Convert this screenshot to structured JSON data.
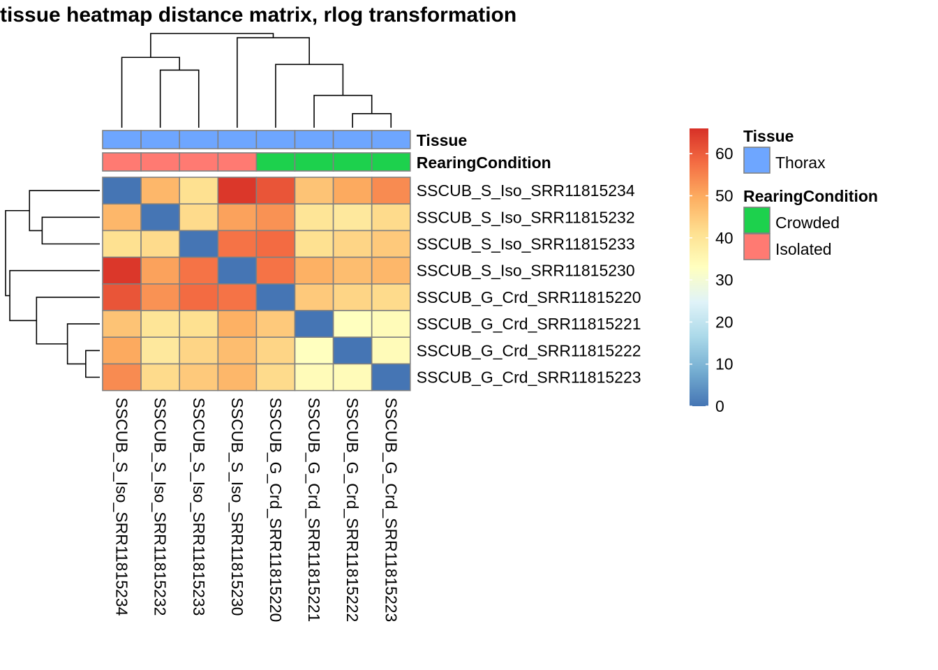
{
  "chart_data": {
    "type": "heatmap",
    "title": "tissue heatmap distance matrix, rlog transformation",
    "rows": [
      "SSCUB_S_Iso_SRR11815234",
      "SSCUB_S_Iso_SRR11815232",
      "SSCUB_S_Iso_SRR11815233",
      "SSCUB_S_Iso_SRR11815230",
      "SSCUB_G_Crd_SRR11815220",
      "SSCUB_G_Crd_SRR11815221",
      "SSCUB_G_Crd_SRR11815222",
      "SSCUB_G_Crd_SRR11815223"
    ],
    "columns": [
      "SSCUB_S_Iso_SRR11815234",
      "SSCUB_S_Iso_SRR11815232",
      "SSCUB_S_Iso_SRR11815233",
      "SSCUB_S_Iso_SRR11815230",
      "SSCUB_G_Crd_SRR11815220",
      "SSCUB_G_Crd_SRR11815221",
      "SSCUB_G_Crd_SRR11815222",
      "SSCUB_G_Crd_SRR11815223"
    ],
    "values": [
      [
        0,
        48,
        41,
        65,
        61,
        46,
        50,
        54
      ],
      [
        48,
        0,
        42,
        51,
        53,
        40,
        39,
        42
      ],
      [
        41,
        42,
        0,
        57,
        58,
        41,
        43,
        45
      ],
      [
        65,
        51,
        57,
        0,
        57,
        49,
        47,
        48
      ],
      [
        61,
        53,
        58,
        57,
        0,
        45,
        43,
        42
      ],
      [
        46,
        40,
        41,
        49,
        45,
        0,
        33,
        34
      ],
      [
        50,
        39,
        43,
        47,
        43,
        33,
        0,
        34
      ],
      [
        54,
        42,
        45,
        48,
        42,
        34,
        34,
        0
      ]
    ],
    "color_scale": {
      "min": 0,
      "max": 66,
      "ticks": [
        0,
        10,
        20,
        30,
        40,
        50,
        60
      ],
      "colors": [
        "#4575B4",
        "#74ADD1",
        "#ABD9E9",
        "#E0F3F8",
        "#FFFFBF",
        "#FEE090",
        "#FDAE61",
        "#F46D43",
        "#D73027"
      ]
    },
    "annotations": {
      "tracks": [
        "Tissue",
        "RearingCondition"
      ],
      "Tissue": [
        "Thorax",
        "Thorax",
        "Thorax",
        "Thorax",
        "Thorax",
        "Thorax",
        "Thorax",
        "Thorax"
      ],
      "RearingCondition": [
        "Isolated",
        "Isolated",
        "Isolated",
        "Isolated",
        "Crowded",
        "Crowded",
        "Crowded",
        "Crowded"
      ]
    },
    "legend": {
      "groups": [
        {
          "title": "Tissue",
          "items": [
            {
              "label": "Thorax",
              "color": "#6EA6FF"
            }
          ]
        },
        {
          "title": "RearingCondition",
          "items": [
            {
              "label": "Crowded",
              "color": "#1DD14D"
            },
            {
              "label": "Isolated",
              "color": "#FF7A72"
            }
          ]
        }
      ]
    },
    "dendrogram": {
      "merges": [
        [
          6,
          7
        ],
        [
          5,
          "m0"
        ],
        [
          4,
          "m1"
        ],
        [
          1,
          2
        ],
        [
          0,
          "m3"
        ],
        [
          3,
          "m2"
        ],
        [
          "m4",
          "m5"
        ]
      ],
      "heights": [
        10,
        23,
        45,
        41,
        50,
        64,
        67
      ]
    }
  }
}
